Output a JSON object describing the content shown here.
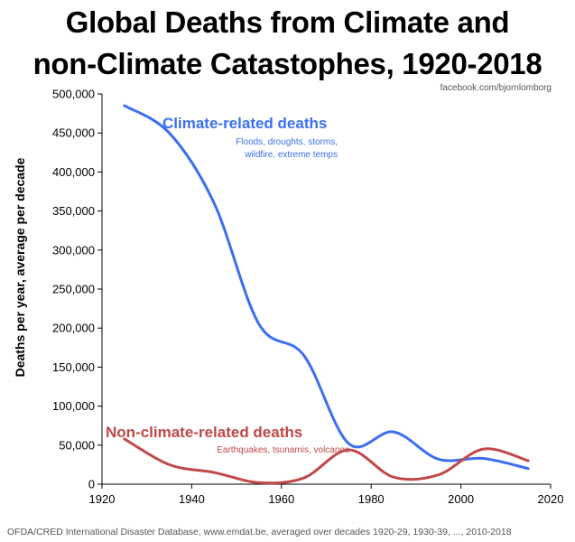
{
  "chart_data": {
    "type": "line",
    "title_line1": "Global Deaths from Climate and",
    "title_line2": "non-Climate Catastophes, 1920-2018",
    "credit": "facebook.com/bjornlomborg",
    "ylabel": "Deaths per year, average per decade",
    "xlabel": "",
    "xlim": [
      1920,
      2020
    ],
    "ylim": [
      0,
      500000
    ],
    "x_ticks": [
      1920,
      1940,
      1960,
      1980,
      2000,
      2020
    ],
    "y_ticks": [
      0,
      50000,
      100000,
      150000,
      200000,
      250000,
      300000,
      350000,
      400000,
      450000,
      500000
    ],
    "y_tick_labels": [
      "0",
      "50,000",
      "100,000",
      "150,000",
      "200,000",
      "250,000",
      "300,000",
      "350,000",
      "400,000",
      "450,000",
      "500,000"
    ],
    "grid": false,
    "series": [
      {
        "name": "Climate-related deaths",
        "note_line1": "Floods, droughts, storms,",
        "note_line2": "wildfire, extreme temps",
        "color": "#3b6ff0",
        "x": [
          1925,
          1935,
          1945,
          1955,
          1965,
          1975,
          1985,
          1995,
          2005,
          2015
        ],
        "values": [
          485000,
          450000,
          360000,
          205000,
          165000,
          52000,
          67000,
          32000,
          33000,
          20000
        ]
      },
      {
        "name": "Non-climate-related deaths",
        "note_line1": "Earthquakes, tsunamis, volcanos",
        "color": "#c04848",
        "x": [
          1925,
          1935,
          1945,
          1955,
          1965,
          1975,
          1985,
          1995,
          2005,
          2015
        ],
        "values": [
          58000,
          25000,
          15000,
          2000,
          8000,
          44000,
          9000,
          12000,
          45000,
          30000
        ]
      }
    ]
  },
  "footer": "OFDA/CRED International Disaster Database, www.emdat.be, averaged over decades 1920-29, 1930-39, ..., 2010-2018"
}
